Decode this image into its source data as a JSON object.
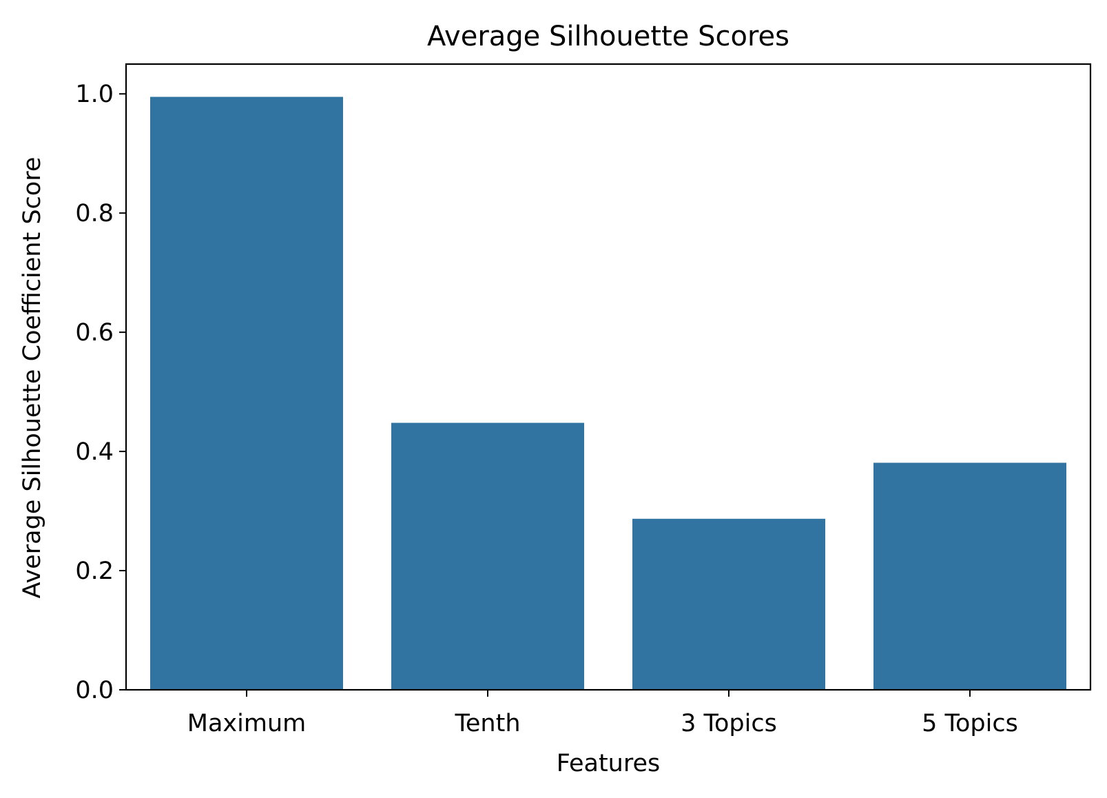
{
  "chart_data": {
    "type": "bar",
    "title": "Average Silhouette Scores",
    "xlabel": "Features",
    "ylabel": "Average Silhouette Coefficient Score",
    "categories": [
      "Maximum",
      "Tenth",
      "3 Topics",
      "5 Topics"
    ],
    "values": [
      0.995,
      0.448,
      0.287,
      0.381
    ],
    "ylim": [
      0,
      1.05
    ],
    "yticks": [
      0.0,
      0.2,
      0.4,
      0.6,
      0.8,
      1.0
    ],
    "ytick_labels": [
      "0.0",
      "0.2",
      "0.4",
      "0.6",
      "0.8",
      "1.0"
    ],
    "grid": false,
    "colors": {
      "bar": "#3274a1",
      "axis": "#000000"
    }
  }
}
